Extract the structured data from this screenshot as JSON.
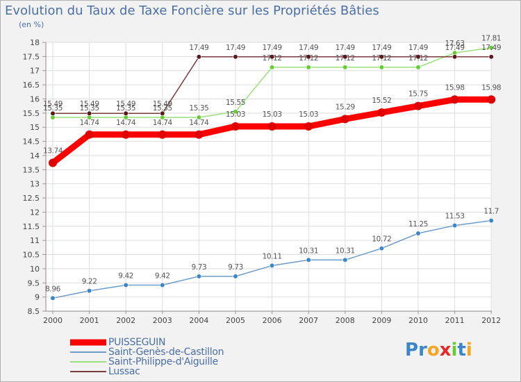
{
  "chart_data": {
    "type": "line",
    "title": "Evolution du Taux de Taxe Foncière sur les Propriétés Bâties",
    "ylabel": "(en %)",
    "xlabel": "",
    "x": [
      "2000",
      "2001",
      "2002",
      "2003",
      "2004",
      "2005",
      "2006",
      "2007",
      "2008",
      "2009",
      "2010",
      "2011",
      "2012"
    ],
    "ylim": [
      8.5,
      18
    ],
    "yticks": [
      "8.5",
      "9",
      "9.5",
      "10",
      "10.5",
      "11",
      "11.5",
      "12",
      "12.5",
      "13",
      "13.5",
      "14",
      "14.5",
      "15",
      "15.5",
      "16",
      "16.5",
      "17",
      "17.5",
      "18"
    ],
    "series": [
      {
        "name": "PUISSEGUIN",
        "color": "#ff0000",
        "marker": "#e00000",
        "values": [
          13.74,
          14.74,
          14.74,
          14.74,
          14.74,
          15.03,
          15.03,
          15.03,
          15.29,
          15.52,
          15.75,
          15.98,
          15.98
        ],
        "labels": [
          "13.74",
          "14.74",
          "14.74",
          "14.74",
          "14.74",
          "15.03",
          "15.03",
          "15.03",
          "15.29",
          "15.52",
          "15.75",
          "15.98",
          "15.98"
        ]
      },
      {
        "name": "Saint-Genès-de-Castillon",
        "color": "#6d9ccb",
        "marker": "#3a86c8",
        "values": [
          8.96,
          9.22,
          9.42,
          9.42,
          9.73,
          9.73,
          10.11,
          10.31,
          10.31,
          10.72,
          11.25,
          11.53,
          11.7
        ],
        "labels": [
          "8.96",
          "9.22",
          "9.42",
          "9.42",
          "9.73",
          "9.73",
          "10.11",
          "10.31",
          "10.31",
          "10.72",
          "11.25",
          "11.53",
          "11.7"
        ]
      },
      {
        "name": "Saint-Philippe-d'Aiguille",
        "color": "#99e07a",
        "marker": "#66cc33",
        "values": [
          15.35,
          15.35,
          15.35,
          15.35,
          15.35,
          15.55,
          17.12,
          17.12,
          17.12,
          17.12,
          17.12,
          17.63,
          17.81
        ],
        "labels": [
          "15.35",
          "15.35",
          "15.35",
          "15.35",
          "15.35",
          "15.55",
          "17.12",
          "17.12",
          "17.12",
          "17.12",
          "17.12",
          "17.63",
          "17.81"
        ]
      },
      {
        "name": "Lussac",
        "color": "#7a3b3b",
        "marker": "#5a1a1a",
        "values": [
          15.49,
          15.49,
          15.49,
          15.49,
          17.49,
          17.49,
          17.49,
          17.49,
          17.49,
          17.49,
          17.49,
          17.49,
          17.49
        ],
        "labels": [
          "15.49",
          "15.49",
          "15.49",
          "15.49",
          "17.49",
          "17.49",
          "17.49",
          "17.49",
          "17.49",
          "17.49",
          "17.49",
          "17.49",
          "17.49"
        ]
      }
    ]
  },
  "legend": {
    "items": [
      "PUISSEGUIN",
      "Saint-Genès-de-Castillon",
      "Saint-Philippe-d'Aiguille",
      "Lussac"
    ]
  },
  "brand": {
    "letters": [
      "P",
      "r",
      "o",
      "x",
      "i",
      "t",
      "i"
    ],
    "colors": [
      "#3a86c8",
      "#3a86c8",
      "#f5a623",
      "#e02b2b",
      "#66cc33",
      "#3a86c8",
      "#f5a623"
    ]
  }
}
